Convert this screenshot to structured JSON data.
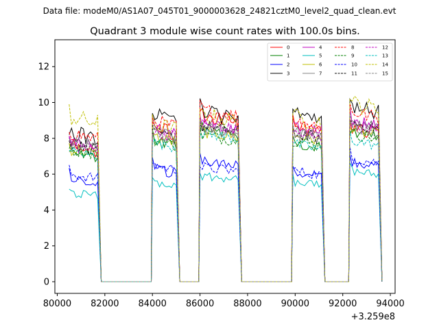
{
  "chart_data": {
    "type": "line",
    "suptitle": "Data file: modeM0/AS1A07_045T01_9000003628_24821cztM0_level2_quad_clean.evt",
    "title": "Quadrant 3 module wise count rates with 100.0s bins.",
    "xlabel": "",
    "ylabel": "",
    "x_offset_label": "+3.259e8",
    "xlim": [
      79900,
      94200
    ],
    "ylim": [
      -0.65,
      13.5
    ],
    "x_ticks": [
      80000,
      82000,
      84000,
      86000,
      88000,
      90000,
      92000,
      94000
    ],
    "x_tick_labels": [
      "80000",
      "82000",
      "84000",
      "86000",
      "88000",
      "90000",
      "92000",
      "94000"
    ],
    "y_ticks": [
      0,
      2,
      4,
      6,
      8,
      10,
      12
    ],
    "y_tick_labels": [
      "0",
      "2",
      "4",
      "6",
      "8",
      "10",
      "12"
    ],
    "grid": false,
    "legend_position": "top-right",
    "legend_columns": 4,
    "segments": [
      {
        "start": 80500,
        "end": 81700
      },
      {
        "start": 84000,
        "end": 85000
      },
      {
        "start": 86000,
        "end": 87600
      },
      {
        "start": 89900,
        "end": 91100
      },
      {
        "start": 92300,
        "end": 93500
      }
    ],
    "gap_level": 0,
    "series": [
      {
        "name": "0",
        "color": "#ff0000",
        "dash": false,
        "levels": [
          7.6,
          8.6,
          9.3,
          8.7,
          8.6
        ],
        "amp": 0.4
      },
      {
        "name": "1",
        "color": "#008000",
        "dash": false,
        "levels": [
          7.3,
          7.9,
          8.6,
          7.8,
          8.4
        ],
        "amp": 0.35
      },
      {
        "name": "2",
        "color": "#0000ff",
        "dash": false,
        "levels": [
          5.7,
          6.3,
          6.7,
          6.1,
          6.7
        ],
        "amp": 0.3
      },
      {
        "name": "3",
        "color": "#000000",
        "dash": false,
        "levels": [
          8.3,
          9.3,
          9.5,
          9.5,
          9.8
        ],
        "amp": 0.45
      },
      {
        "name": "4",
        "color": "#bf00bf",
        "dash": false,
        "levels": [
          7.9,
          8.6,
          8.8,
          8.7,
          9.0
        ],
        "amp": 0.35
      },
      {
        "name": "5",
        "color": "#00bfbf",
        "dash": false,
        "levels": [
          5.0,
          5.6,
          5.9,
          5.6,
          6.2
        ],
        "amp": 0.25
      },
      {
        "name": "6",
        "color": "#bfbf00",
        "dash": false,
        "levels": [
          7.4,
          8.1,
          8.4,
          8.2,
          8.5
        ],
        "amp": 0.35
      },
      {
        "name": "7",
        "color": "#808080",
        "dash": false,
        "levels": [
          7.8,
          8.4,
          8.6,
          8.4,
          8.8
        ],
        "amp": 0.35
      },
      {
        "name": "8",
        "color": "#ff0000",
        "dash": true,
        "levels": [
          8.3,
          9.0,
          9.6,
          9.0,
          9.5
        ],
        "amp": 0.4
      },
      {
        "name": "9",
        "color": "#008000",
        "dash": true,
        "levels": [
          7.4,
          7.9,
          8.2,
          7.9,
          8.3
        ],
        "amp": 0.35
      },
      {
        "name": "10",
        "color": "#0000ff",
        "dash": true,
        "levels": [
          6.0,
          6.5,
          6.4,
          6.2,
          6.9
        ],
        "amp": 0.3
      },
      {
        "name": "11",
        "color": "#000000",
        "dash": true,
        "levels": [
          7.7,
          8.3,
          8.7,
          8.3,
          8.9
        ],
        "amp": 0.35
      },
      {
        "name": "12",
        "color": "#bf00bf",
        "dash": true,
        "levels": [
          7.6,
          8.4,
          8.8,
          8.3,
          8.8
        ],
        "amp": 0.35
      },
      {
        "name": "13",
        "color": "#00bfbf",
        "dash": true,
        "levels": [
          7.3,
          7.8,
          8.3,
          7.7,
          7.9
        ],
        "amp": 0.3
      },
      {
        "name": "14",
        "color": "#bfbf00",
        "dash": true,
        "levels": [
          9.2,
          8.8,
          9.3,
          9.2,
          10.0
        ],
        "amp": 0.5
      },
      {
        "name": "15",
        "color": "#808080",
        "dash": true,
        "levels": [
          7.8,
          8.3,
          8.6,
          8.3,
          8.7
        ],
        "amp": 0.35
      }
    ]
  }
}
